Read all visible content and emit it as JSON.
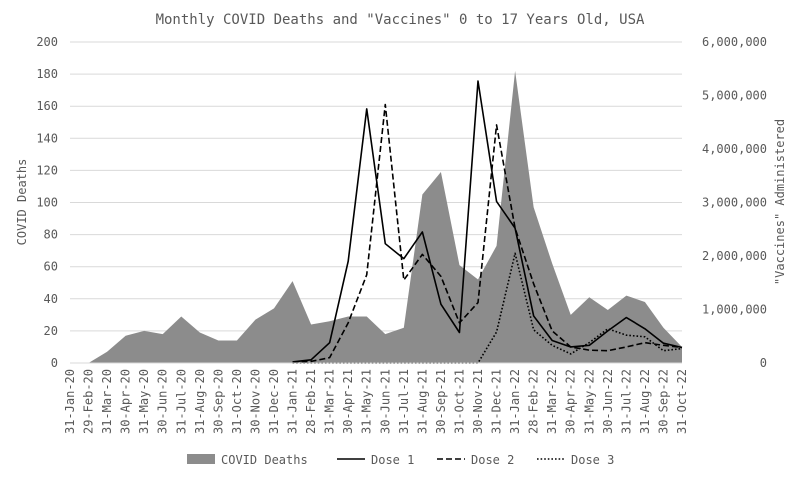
{
  "chart_data": {
    "type": "area+line",
    "title": "Monthly COVID Deaths and \"Vaccines\" 0 to 17 Years Old, USA",
    "ylabel": "COVID Deaths",
    "y2label": "\"Vaccines\" Administered",
    "ylim": [
      0,
      200
    ],
    "y2lim": [
      0,
      6000000
    ],
    "yticks": [
      "0",
      "20",
      "40",
      "60",
      "80",
      "100",
      "120",
      "140",
      "160",
      "180",
      "200"
    ],
    "y2ticks": [
      "0",
      "1,000,000",
      "2,000,000",
      "3,000,000",
      "4,000,000",
      "5,000,000",
      "6,000,000"
    ],
    "grid": true,
    "legend_position": "bottom",
    "categories": [
      "31-Jan-20",
      "29-Feb-20",
      "31-Mar-20",
      "30-Apr-20",
      "31-May-20",
      "30-Jun-20",
      "31-Jul-20",
      "31-Aug-20",
      "30-Sep-20",
      "31-Oct-20",
      "30-Nov-20",
      "31-Dec-20",
      "31-Jan-21",
      "28-Feb-21",
      "31-Mar-21",
      "30-Apr-21",
      "31-May-21",
      "30-Jun-21",
      "31-Jul-21",
      "31-Aug-21",
      "30-Sep-21",
      "31-Oct-21",
      "30-Nov-21",
      "31-Dec-21",
      "31-Jan-22",
      "28-Feb-22",
      "31-Mar-22",
      "30-Apr-22",
      "31-May-22",
      "30-Jun-22",
      "31-Jul-22",
      "31-Aug-22",
      "30-Sep-22",
      "31-Oct-22"
    ],
    "series": [
      {
        "name": "COVID Deaths",
        "kind": "area",
        "axis": "left",
        "color": "#8c8c8c",
        "values": [
          0,
          0,
          7,
          17,
          20,
          18,
          29,
          19,
          14,
          14,
          27,
          34,
          51,
          24,
          26,
          29,
          29,
          18,
          22,
          105,
          119,
          61,
          52,
          73,
          182,
          97,
          62,
          30,
          41,
          33,
          42,
          38,
          22,
          10
        ]
      },
      {
        "name": "Dose 1",
        "kind": "line",
        "axis": "right",
        "color": "#000000",
        "dash": "solid",
        "values": [
          null,
          null,
          null,
          null,
          null,
          null,
          null,
          null,
          null,
          null,
          null,
          null,
          20000,
          60000,
          380000,
          1900000,
          4750000,
          2230000,
          1950000,
          2450000,
          1100000,
          570000,
          5270000,
          3020000,
          2520000,
          880000,
          420000,
          300000,
          330000,
          600000,
          850000,
          640000,
          370000,
          290000
        ]
      },
      {
        "name": "Dose 2",
        "kind": "line",
        "axis": "right",
        "color": "#000000",
        "dash": "dashed",
        "values": [
          null,
          null,
          null,
          null,
          null,
          null,
          null,
          null,
          null,
          null,
          null,
          null,
          10000,
          30000,
          100000,
          750000,
          1650000,
          4830000,
          1550000,
          2030000,
          1620000,
          750000,
          1130000,
          4450000,
          2520000,
          1480000,
          600000,
          300000,
          240000,
          230000,
          300000,
          380000,
          330000,
          290000
        ]
      },
      {
        "name": "Dose 3",
        "kind": "line",
        "axis": "right",
        "color": "#000000",
        "dash": "dotted",
        "values": [
          null,
          null,
          null,
          null,
          null,
          null,
          null,
          null,
          null,
          null,
          null,
          null,
          0,
          0,
          0,
          0,
          0,
          0,
          0,
          0,
          0,
          0,
          0,
          580000,
          2050000,
          620000,
          330000,
          170000,
          380000,
          640000,
          520000,
          490000,
          230000,
          270000
        ]
      }
    ]
  }
}
